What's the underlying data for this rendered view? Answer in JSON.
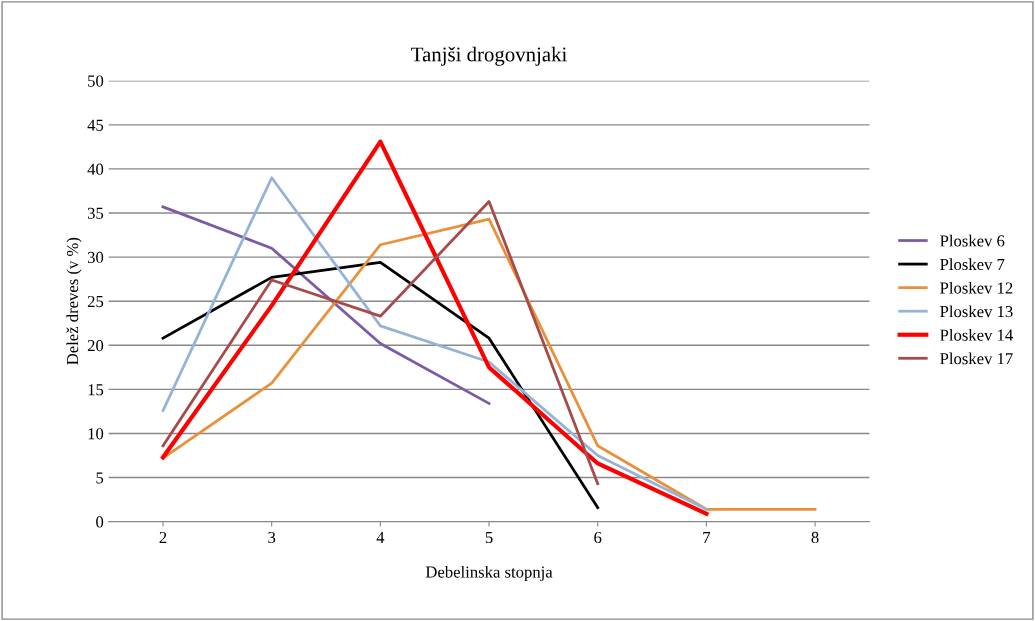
{
  "chart_data": {
    "type": "line",
    "title": "Tanjši drogovnjaki",
    "xlabel": "Debelinska stopnja",
    "ylabel": "Delež dreves (v %)",
    "categories": [
      "2",
      "3",
      "4",
      "5",
      "6",
      "7",
      "8"
    ],
    "series": [
      {
        "name": "Ploskev 6",
        "color": "#7b5aa6",
        "values": [
          35.7,
          31.0,
          20.2,
          13.4,
          null,
          null,
          null
        ]
      },
      {
        "name": "Ploskev 7",
        "color": "#000000",
        "values": [
          20.8,
          27.7,
          29.4,
          20.8,
          1.6,
          null,
          null
        ]
      },
      {
        "name": "Ploskev 12",
        "color": "#e8913a",
        "values": [
          7.2,
          15.7,
          31.4,
          34.3,
          8.6,
          1.4,
          1.4
        ]
      },
      {
        "name": "Ploskev 13",
        "color": "#95b3d7",
        "values": [
          12.6,
          39.0,
          22.2,
          18.1,
          7.5,
          1.4,
          null
        ]
      },
      {
        "name": "Ploskev 14",
        "color": "#ff0000",
        "values": [
          7.3,
          24.5,
          43.1,
          17.5,
          6.6,
          0.9,
          null
        ]
      },
      {
        "name": "Ploskev 17",
        "color": "#a84a4a",
        "values": [
          8.6,
          27.4,
          23.3,
          36.3,
          4.3,
          null,
          null
        ]
      }
    ],
    "ylim": [
      0,
      50
    ],
    "yticks": [
      0,
      5,
      10,
      15,
      20,
      25,
      30,
      35,
      40,
      45,
      50
    ],
    "grid": "y",
    "legend": "right",
    "marker": "none"
  }
}
